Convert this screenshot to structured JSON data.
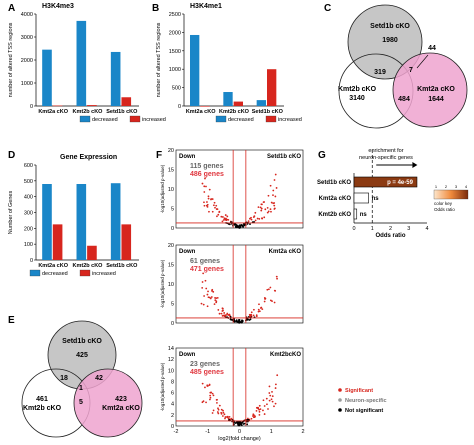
{
  "colors": {
    "decreased": "#1a86c8",
    "increased": "#d7261e",
    "setd1b": "#c6c6c6",
    "kmt2a": "#eea3cf",
    "kmt2b": "#ffffff",
    "odds_bar": "#8b3a12",
    "significant": "#d7261e",
    "neuron": "#9a9a9a",
    "notsig": "#000000"
  },
  "panel_labels": [
    "A",
    "B",
    "C",
    "D",
    "E",
    "F",
    "G"
  ],
  "chart_data": [
    {
      "id": "A",
      "type": "bar",
      "title": "H3K4me3",
      "ylabel": "number of altered TSS regions",
      "ylim": [
        0,
        4000
      ],
      "yticks": [
        "0",
        "1000",
        "2000",
        "3000",
        "4000"
      ],
      "categories": [
        "Kmt2a cKO",
        "Kmt2b cKO",
        "Setd1b cKO"
      ],
      "series": [
        {
          "name": "decreased",
          "values": [
            2450,
            3700,
            2350
          ]
        },
        {
          "name": "increased",
          "values": [
            20,
            40,
            380
          ]
        }
      ],
      "legend": [
        "decreased",
        "increased"
      ]
    },
    {
      "id": "B",
      "type": "bar",
      "title": "H3K4me1",
      "ylabel": "number of altered TSS regions",
      "ylim": [
        0,
        2500
      ],
      "yticks": [
        "0",
        "500",
        "1000",
        "1500",
        "2000",
        "2500"
      ],
      "categories": [
        "Kmt2a cKO",
        "Kmt2b cKO",
        "Setd1b cKO"
      ],
      "series": [
        {
          "name": "decreased",
          "values": [
            1930,
            380,
            160
          ]
        },
        {
          "name": "increased",
          "values": [
            0,
            120,
            1000
          ]
        }
      ],
      "legend": [
        "decreased",
        "increased"
      ]
    },
    {
      "id": "D",
      "type": "bar",
      "title": "Gene Expression",
      "ylabel": "Number of Genes",
      "ylim": [
        0,
        600
      ],
      "yticks": [
        "0",
        "100",
        "200",
        "300",
        "400",
        "500",
        "600"
      ],
      "categories": [
        "Kmt2a cKO",
        "Kmt2b cKO",
        "Setd1b cKO"
      ],
      "series": [
        {
          "name": "decreased",
          "values": [
            480,
            480,
            485
          ]
        },
        {
          "name": "increased",
          "values": [
            225,
            90,
            225
          ]
        }
      ],
      "legend": [
        "decreased",
        "increased"
      ]
    },
    {
      "id": "F",
      "type": "scatter",
      "xlabel": "log2(fold change)",
      "ylabel": "-log10(adjusted p-value)",
      "xticks": [
        "-2",
        "-1",
        "0",
        "1",
        "2"
      ],
      "xlim": [
        -2,
        2
      ],
      "panels": [
        {
          "name": "Setd1b cKO",
          "down": "Down",
          "genes_neuron": "115 genes",
          "genes_sig": "486 genes",
          "yticks": [
            "0",
            "5",
            "10",
            "15",
            "20"
          ],
          "ylim": [
            0,
            20
          ],
          "seed": 3
        },
        {
          "name": "Kmt2a cKO",
          "down": "Down",
          "genes_neuron": "61 genes",
          "genes_sig": "471 genes",
          "yticks": [
            "0",
            "5",
            "10",
            "15",
            "20"
          ],
          "ylim": [
            0,
            20
          ],
          "seed": 7
        },
        {
          "name": "Kmt2bcKO",
          "down": "Down",
          "genes_neuron": "23 genes",
          "genes_sig": "485 genes",
          "yticks": [
            "0",
            "2",
            "4",
            "6",
            "8",
            "10",
            "12",
            "14"
          ],
          "ylim": [
            0,
            14
          ],
          "seed": 11
        }
      ],
      "legend": [
        "Significant",
        "Neuron-specific",
        "Not significant"
      ]
    },
    {
      "id": "G",
      "type": "bar",
      "orientation": "horizontal",
      "annotation": "enrichment for neuron-specific genes",
      "xlabel": "Odds ratio",
      "xlim": [
        0,
        4
      ],
      "xticks": [
        "0",
        "1",
        "2",
        "3",
        "4"
      ],
      "reference_line": 1,
      "categories": [
        "Setd1b cKO",
        "Kmt2a cKO",
        "Kmt2b cKO"
      ],
      "values": [
        3.45,
        0.8,
        0.15
      ],
      "bar_labels": [
        "p = 4e-59",
        "ns",
        "ns"
      ],
      "colorbar": {
        "title": "color key",
        "subtitle": "Odds ratio",
        "ticks": [
          "1",
          "2",
          "3",
          "4"
        ]
      }
    }
  ],
  "venn_C": {
    "sets": [
      "Setd1b cKO",
      "Kmt2b cKO",
      "Kmt2a cKO"
    ],
    "counts": {
      "setd1b_only": "1980",
      "kmt2b_only": "3140",
      "kmt2a_only": "1644",
      "setd1b_kmt2b": "319",
      "kmt2b_kmt2a": "484",
      "setd1b_kmt2a": "44",
      "all": "7"
    }
  },
  "venn_E": {
    "sets": [
      "Setd1b cKO",
      "Kmt2b cKO",
      "Kmt2a cKO"
    ],
    "counts": {
      "setd1b_only": "425",
      "kmt2b_only": "461",
      "kmt2a_only": "423",
      "setd1b_kmt2b": "18",
      "setd1b_kmt2a": "42",
      "kmt2b_kmt2a": "5",
      "all": "1"
    }
  }
}
